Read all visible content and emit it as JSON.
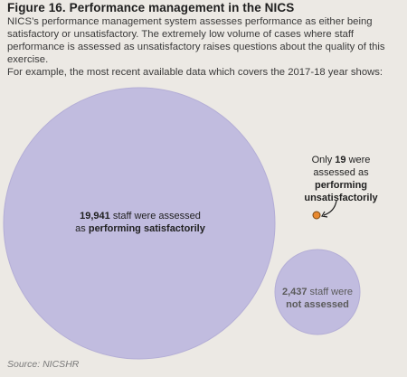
{
  "figure": {
    "title": "Figure 16. Performance management in the NICS",
    "intro": "NICS’s performance management system assesses performance as either being satisfactory or unsatisfactory.  The extremely low volume of cases where staff performance is assessed as unsatisfactory raises questions about the quality of this exercise.",
    "intro2": "For example, the most recent available data which covers the 2017-18 year shows:",
    "source": "Source: NICSHR"
  },
  "bubbles": {
    "satisfactory": {
      "value": "19,941",
      "pre": " staff were assessed",
      "line2_pre": "as ",
      "line2_bold": "performing satisfactorily",
      "color": "#c1bcdf"
    },
    "not_assessed": {
      "value": "2,437",
      "pre": " staff were",
      "line2_bold": "not assessed",
      "color": "#c1bcdf"
    },
    "unsatisfactory": {
      "pre": "Only ",
      "value": "19",
      "post": " were",
      "line2": "assessed as",
      "line3_bold": "performing",
      "line4_bold": "unsatisfactorily",
      "color": "#e8892f"
    }
  }
}
